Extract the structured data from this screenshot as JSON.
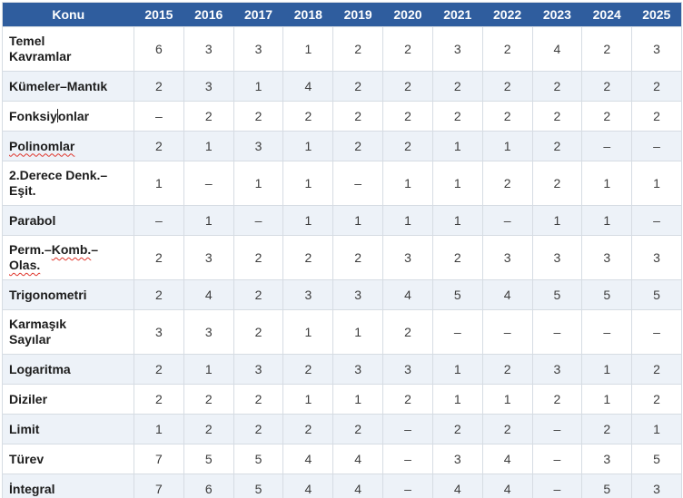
{
  "colors": {
    "header_bg": "#2f5d9e",
    "header_text": "#ffffff",
    "stripe_bg": "#edf2f8",
    "cell_border": "#d6dce3",
    "topic_text": "#1c1c1c",
    "value_text": "#3d3d3d",
    "spellcheck_squiggle": "#e0362c"
  },
  "table": {
    "header": {
      "topic_label": "Konu",
      "years": [
        "2015",
        "2016",
        "2017",
        "2018",
        "2019",
        "2020",
        "2021",
        "2022",
        "2023",
        "2024",
        "2025"
      ]
    },
    "rows": [
      {
        "topic_parts": [
          {
            "text": "Temel"
          },
          {
            "break": true
          },
          {
            "text": "Kavramlar"
          }
        ],
        "values": [
          "6",
          "3",
          "3",
          "1",
          "2",
          "2",
          "3",
          "2",
          "4",
          "2",
          "3"
        ]
      },
      {
        "topic_parts": [
          {
            "text": "Kümeler–Mantık"
          }
        ],
        "values": [
          "2",
          "3",
          "1",
          "4",
          "2",
          "2",
          "2",
          "2",
          "2",
          "2",
          "2"
        ]
      },
      {
        "topic_parts": [
          {
            "text": "Fonksiy"
          },
          {
            "caret": true
          },
          {
            "text": "onlar"
          }
        ],
        "values": [
          "–",
          "2",
          "2",
          "2",
          "2",
          "2",
          "2",
          "2",
          "2",
          "2",
          "2"
        ]
      },
      {
        "topic_parts": [
          {
            "text": "Polinomlar",
            "squiggle": true
          }
        ],
        "values": [
          "2",
          "1",
          "3",
          "1",
          "2",
          "2",
          "1",
          "1",
          "2",
          "–",
          "–"
        ]
      },
      {
        "topic_parts": [
          {
            "text": "2.Derece Denk.–"
          },
          {
            "break": true
          },
          {
            "text": "Eşit."
          }
        ],
        "values": [
          "1",
          "–",
          "1",
          "1",
          "–",
          "1",
          "1",
          "2",
          "2",
          "1",
          "1"
        ]
      },
      {
        "topic_parts": [
          {
            "text": "Parabol"
          }
        ],
        "values": [
          "–",
          "1",
          "–",
          "1",
          "1",
          "1",
          "1",
          "–",
          "1",
          "1",
          "–"
        ]
      },
      {
        "topic_parts": [
          {
            "text": "Perm.–"
          },
          {
            "text": "Komb.",
            "squiggle": true
          },
          {
            "text": "–"
          },
          {
            "break": true
          },
          {
            "text": "Olas.",
            "squiggle": true
          }
        ],
        "values": [
          "2",
          "3",
          "2",
          "2",
          "2",
          "3",
          "2",
          "3",
          "3",
          "3",
          "3"
        ]
      },
      {
        "topic_parts": [
          {
            "text": "Trigonometri"
          }
        ],
        "values": [
          "2",
          "4",
          "2",
          "3",
          "3",
          "4",
          "5",
          "4",
          "5",
          "5",
          "5"
        ]
      },
      {
        "topic_parts": [
          {
            "text": "Karmaşık"
          },
          {
            "break": true
          },
          {
            "text": "Sayılar"
          }
        ],
        "values": [
          "3",
          "3",
          "2",
          "1",
          "1",
          "2",
          "–",
          "–",
          "–",
          "–",
          "–"
        ]
      },
      {
        "topic_parts": [
          {
            "text": "Logaritma"
          }
        ],
        "values": [
          "2",
          "1",
          "3",
          "2",
          "3",
          "3",
          "1",
          "2",
          "3",
          "1",
          "2"
        ]
      },
      {
        "topic_parts": [
          {
            "text": "Diziler"
          }
        ],
        "values": [
          "2",
          "2",
          "2",
          "1",
          "1",
          "2",
          "1",
          "1",
          "2",
          "1",
          "2"
        ]
      },
      {
        "topic_parts": [
          {
            "text": "Limit"
          }
        ],
        "values": [
          "1",
          "2",
          "2",
          "2",
          "2",
          "–",
          "2",
          "2",
          "–",
          "2",
          "1"
        ]
      },
      {
        "topic_parts": [
          {
            "text": "Türev"
          }
        ],
        "values": [
          "7",
          "5",
          "5",
          "4",
          "4",
          "–",
          "3",
          "4",
          "–",
          "3",
          "5"
        ]
      },
      {
        "topic_parts": [
          {
            "text": "İntegral"
          }
        ],
        "values": [
          "7",
          "6",
          "5",
          "4",
          "4",
          "–",
          "4",
          "4",
          "–",
          "5",
          "3"
        ]
      }
    ]
  }
}
